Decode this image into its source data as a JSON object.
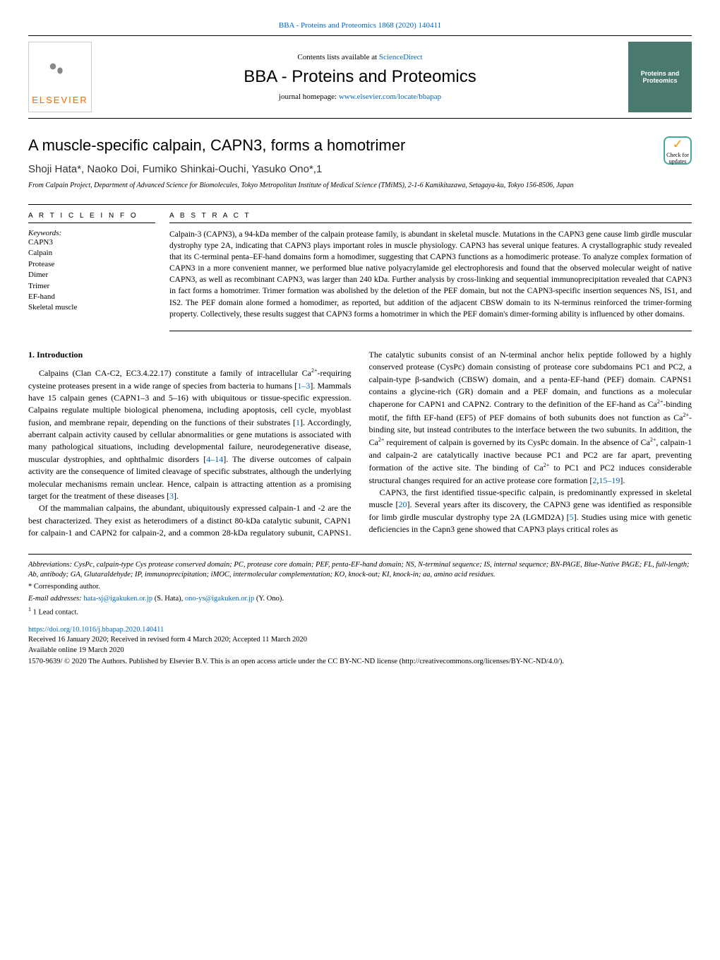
{
  "header": {
    "top_link_prefix": "BBA - Proteins and Proteomics 1868 (2020) 140411",
    "contents_prefix": "Contents lists available at ",
    "contents_link": "ScienceDirect",
    "journal_name": "BBA - Proteins and Proteomics",
    "homepage_prefix": "journal homepage: ",
    "homepage_link": "www.elsevier.com/locate/bbapap",
    "publisher": "ELSEVIER",
    "cover_text_1": "Proteins and",
    "cover_text_2": "Proteomics"
  },
  "checkmark": {
    "icon": "✓",
    "line1": "Check for",
    "line2": "updates"
  },
  "article": {
    "title": "A muscle-specific calpain, CAPN3, forms a homotrimer",
    "authors": "Shoji Hata*, Naoko Doi, Fumiko Shinkai-Ouchi, Yasuko Ono*,1",
    "affiliation": "From Calpain Project, Department of Advanced Science for Biomolecules, Tokyo Metropolitan Institute of Medical Science (TMiMS), 2-1-6 Kamikitazawa, Setagaya-ku, Tokyo 156-8506, Japan"
  },
  "info": {
    "heading": "A R T I C L E  I N F O",
    "keywords_label": "Keywords:",
    "keywords": [
      "CAPN3",
      "Calpain",
      "Protease",
      "Dimer",
      "Trimer",
      "EF-hand",
      "Skeletal muscle"
    ]
  },
  "abstract": {
    "heading": "A B S T R A C T",
    "text": "Calpain-3 (CAPN3), a 94-kDa member of the calpain protease family, is abundant in skeletal muscle. Mutations in the CAPN3 gene cause limb girdle muscular dystrophy type 2A, indicating that CAPN3 plays important roles in muscle physiology. CAPN3 has several unique features. A crystallographic study revealed that its C-terminal penta–EF-hand domains form a homodimer, suggesting that CAPN3 functions as a homodimeric protease. To analyze complex formation of CAPN3 in a more convenient manner, we performed blue native polyacrylamide gel electrophoresis and found that the observed molecular weight of native CAPN3, as well as recombinant CAPN3, was larger than 240 kDa. Further analysis by cross-linking and sequential immunoprecipitation revealed that CAPN3 in fact forms a homotrimer. Trimer formation was abolished by the deletion of the PEF domain, but not the CAPN3-specific insertion sequences NS, IS1, and IS2. The PEF domain alone formed a homodimer, as reported, but addition of the adjacent CBSW domain to its N-terminus reinforced the trimer-forming property. Collectively, these results suggest that CAPN3 forms a homotrimer in which the PEF domain's dimer-forming ability is influenced by other domains."
  },
  "body": {
    "intro_heading": "1. Introduction",
    "para1_a": "Calpains (Clan CA-C2, EC3.4.22.17) constitute a family of intracellular Ca",
    "para1_b": "-requiring cysteine proteases present in a wide range of species from bacteria to humans [",
    "ref1": "1–3",
    "para1_c": "]. Mammals have 15 calpain genes (CAPN1–3 and 5–16) with ubiquitous or tissue-specific expression. Calpains regulate multiple biological phenomena, including apoptosis, cell cycle, myoblast fusion, and membrane repair, depending on the functions of their substrates [",
    "ref2": "1",
    "para1_d": "]. Accordingly, aberrant calpain activity caused by cellular abnormalities or gene mutations is associated with many pathological situations, including developmental failure, neurodegenerative disease, muscular dystrophies, and ophthalmic disorders [",
    "ref3": "4–14",
    "para1_e": "]. The diverse outcomes of calpain activity are the consequence of limited cleavage of specific substrates, although the underlying molecular mechanisms remain unclear. Hence, calpain is attracting attention as a promising target for the treatment of these diseases [",
    "ref4": "3",
    "para1_f": "].",
    "para2_a": "Of the mammalian calpains, the abundant, ubiquitously expressed calpain-1 and -2 are the best characterized. They exist as heterodimers of a distinct 80-kDa catalytic subunit, CAPN1 for calpain-1 and CAPN2 for calpain-2, and a common 28-kDa regulatory subunit, CAPNS1. The catalytic subunits consist of an N-terminal anchor helix peptide followed by a highly conserved protease (CysPc) domain consisting of protease core subdomains PC1 and PC2, a calpain-type β-sandwich (CBSW) domain, and a penta-EF-hand (PEF) domain. CAPNS1 contains a glycine-rich (GR) domain and a PEF domain, and functions as a molecular chaperone for CAPN1 and CAPN2. Contrary to the definition of the EF-hand as Ca",
    "para2_b": "-binding motif, the fifth EF-hand (EF5) of PEF domains of both subunits does not function as Ca",
    "para2_c": "-binding site, but instead contributes to the interface between the two subunits. In addition, the Ca",
    "para2_d": " requirement of calpain is governed by its CysPc domain. In the absence of Ca",
    "para2_e": ", calpain-1 and calpain-2 are catalytically inactive because PC1 and PC2 are far apart, preventing formation of the active site. The binding of Ca",
    "para2_f": " to PC1 and PC2 induces considerable structural changes required for an active protease core formation [",
    "ref5": "2",
    "ref6": "15–19",
    "para2_g": "].",
    "para3_a": "CAPN3, the first identified tissue-specific calpain, is predominantly expressed in skeletal muscle [",
    "ref7": "20",
    "para3_b": "]. Several years after its discovery, the CAPN3 gene was identified as responsible for limb girdle muscular dystrophy type 2A (LGMD2A) [",
    "ref8": "5",
    "para3_c": "]. Studies using mice with genetic deficiencies in the Capn3 gene showed that CAPN3 plays critical roles as"
  },
  "footer": {
    "abbrev": "Abbreviations: CysPc, calpain-type Cys protease conserved domain; PC, protease core domain; PEF, penta-EF-hand domain; NS, N-terminal sequence; IS, internal sequence; BN-PAGE, Blue-Native PAGE; FL, full-length; Ab, antibody; GA, Glutaraldehyde; IP, immunoprecipitation; iMOC, intermolecular complementation; KO, knock-out; KI, knock-in; aa, amino acid residues.",
    "corresp": "* Corresponding author.",
    "emails_prefix": "E-mail addresses: ",
    "email1": "hata-sj@igakuken.or.jp",
    "email1_suffix": " (S. Hata), ",
    "email2": "ono-ys@igakuken.or.jp",
    "email2_suffix": " (Y. Ono).",
    "lead": "1 Lead contact.",
    "doi": "https://doi.org/10.1016/j.bbapap.2020.140411",
    "received": "Received 16 January 2020; Received in revised form 4 March 2020; Accepted 11 March 2020",
    "available": "Available online 19 March 2020",
    "copyright": "1570-9639/ © 2020 The Authors. Published by Elsevier B.V. This is an open access article under the CC BY-NC-ND license (http://creativecommons.org/licenses/BY-NC-ND/4.0/)."
  },
  "colors": {
    "link": "#0066cc",
    "elsevier_orange": "#ff6600",
    "cover_bg": "#4a7a6f"
  }
}
